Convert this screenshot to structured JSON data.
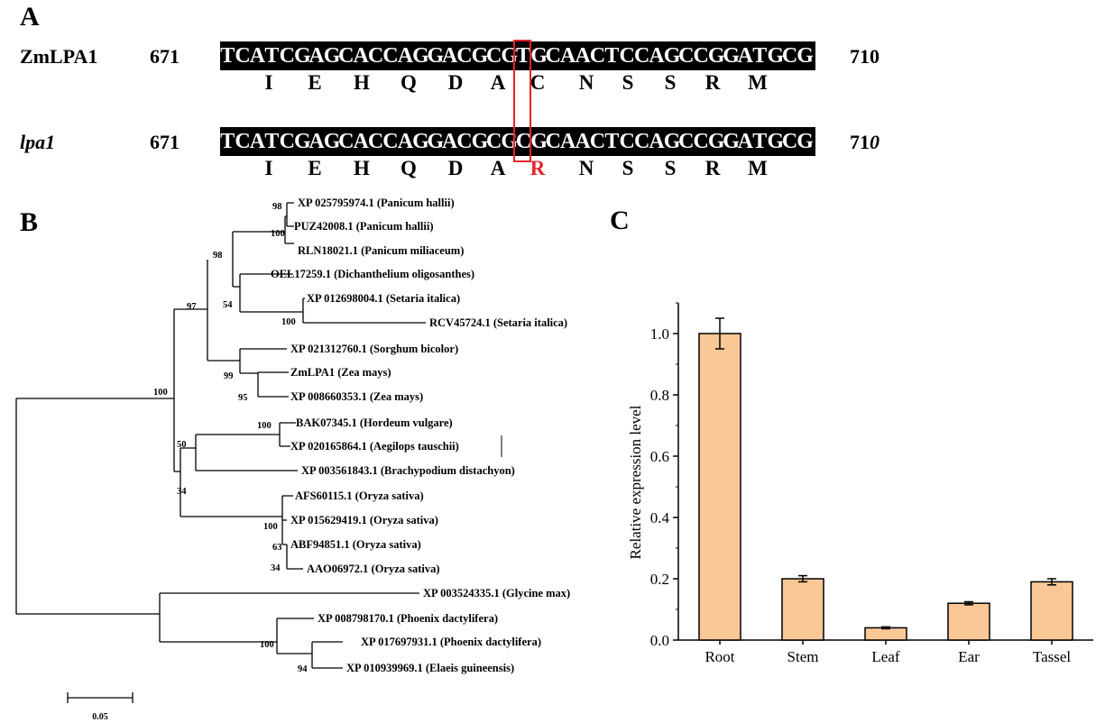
{
  "panel_a": {
    "letter": "A",
    "rows": [
      {
        "name": "ZmLPA1",
        "italic": false,
        "start": "671",
        "end": "710",
        "end_italic_suffix": "",
        "sequence": "TCATCGAGCACCAGGACGCGTGCAACTCCAGCCGGATGCG",
        "amino_acids": [
          "I",
          "E",
          "H",
          "Q",
          "D",
          "A",
          "C",
          "N",
          "S",
          "S",
          "R",
          "M"
        ],
        "mutant_aa_index": -1
      },
      {
        "name": "lpa1",
        "italic": true,
        "start": "671",
        "end": "71",
        "end_italic_suffix": "0",
        "sequence": "TCATCGAGCACCAGGACGCGCGCAACTCCAGCCGGATGCG",
        "amino_acids": [
          "I",
          "E",
          "H",
          "Q",
          "D",
          "A",
          "R",
          "N",
          "S",
          "S",
          "R",
          "M"
        ],
        "mutant_aa_index": 6
      }
    ],
    "highlight_color": "#e3242b"
  },
  "panel_b": {
    "letter": "B",
    "scale_label": "0.05",
    "taxa": [
      "XP 025795974.1 (Panicum hallii)",
      "PUZ42008.1 (Panicum hallii)",
      "RLN18021.1 (Panicum miliaceum)",
      "OEL17259.1 (Dichanthelium oligosanthes)",
      "XP 012698004.1 (Setaria italica)",
      "RCV45724.1 (Setaria italica)",
      "XP 021312760.1 (Sorghum bicolor)",
      "ZmLPA1 (Zea mays)",
      "XP 008660353.1 (Zea mays)",
      "BAK07345.1 (Hordeum vulgare)",
      "XP 020165864.1 (Aegilops tauschii)",
      "XP 003561843.1 (Brachypodium distachyon)",
      "AFS60115.1 (Oryza sativa)",
      "XP 015629419.1 (Oryza sativa)",
      "ABF94851.1 (Oryza sativa)",
      "AAO06972.1 (Oryza sativa)",
      "XP 003524335.1 (Glycine max)",
      "XP 008798170.1 (Phoenix dactylifera)",
      "XP 017697931.1 (Phoenix dactylifera)",
      "XP 010939969.1 (Elaeis guineensis)"
    ],
    "bootstrap": [
      "98",
      "100",
      "98",
      "54",
      "100",
      "97",
      "99",
      "95",
      "100",
      "100",
      "50",
      "34",
      "100",
      "63",
      "34",
      "100",
      "94"
    ]
  },
  "chart_data": {
    "type": "bar",
    "panel_letter": "C",
    "categories": [
      "Root",
      "Stem",
      "Leaf",
      "Ear",
      "Tassel"
    ],
    "values": [
      1.0,
      0.2,
      0.04,
      0.12,
      0.19
    ],
    "errors": [
      0.05,
      0.01,
      0.003,
      0.005,
      0.01
    ],
    "ylabel": "Relative expression level",
    "xlabel": "",
    "ylim": [
      0,
      1.1
    ],
    "yticks": [
      "0.0",
      "0.2",
      "0.4",
      "0.6",
      "0.8",
      "1.0"
    ],
    "bar_color": "#fac896",
    "grid": false
  }
}
